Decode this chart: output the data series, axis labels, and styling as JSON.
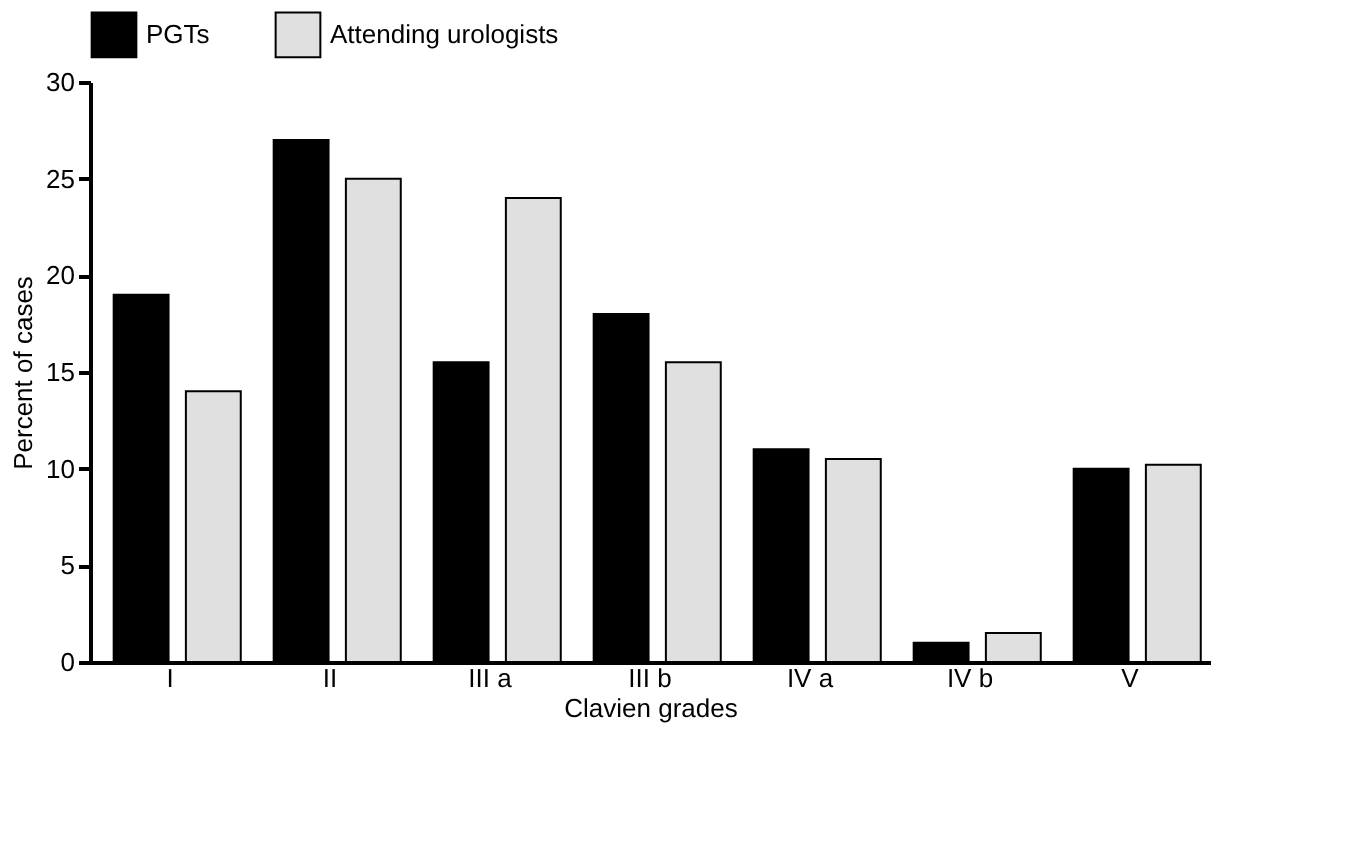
{
  "chart_data": {
    "type": "bar",
    "xlabel": "Clavien grades",
    "ylabel": "Percent of cases",
    "categories": [
      "I",
      "II",
      "III a",
      "III b",
      "IV a",
      "IV b",
      "V"
    ],
    "series": [
      {
        "name": "PGTs",
        "color": "#000000",
        "values": [
          19,
          27,
          15.5,
          18,
          11,
          1,
          10
        ]
      },
      {
        "name": "Attending urologists",
        "color": "#e0e0e0",
        "values": [
          14,
          25,
          24,
          15.5,
          10.5,
          1.5,
          10.2
        ]
      }
    ],
    "ylim": [
      0,
      30
    ],
    "yticks": [
      0,
      5,
      10,
      15,
      20,
      25,
      30
    ],
    "grid": false,
    "legend": "top left"
  }
}
